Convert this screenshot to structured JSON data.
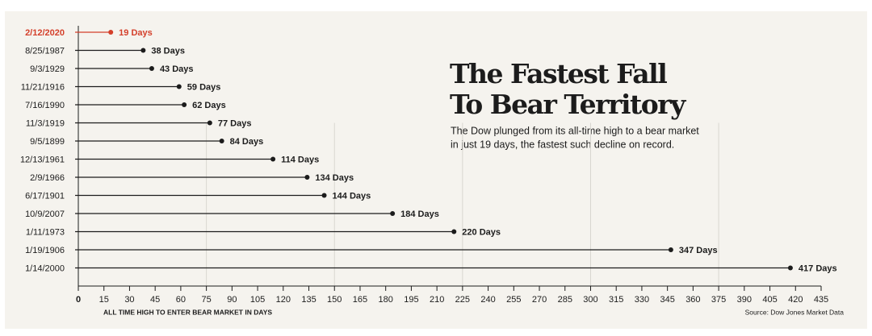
{
  "chart_data": {
    "type": "lollipop",
    "title": [
      "The Fastest Fall",
      "To Bear Territory"
    ],
    "subtitle": [
      "The Dow plunged from its all-time high to a bear market",
      "in just 19 days, the fastest such decline on record."
    ],
    "categories": [
      "2/12/2020",
      "8/25/1987",
      "9/3/1929",
      "11/21/1916",
      "7/16/1990",
      "11/3/1919",
      "9/5/1899",
      "12/13/1961",
      "2/9/1966",
      "6/17/1901",
      "10/9/2007",
      "1/11/1973",
      "1/19/1906",
      "1/14/2000"
    ],
    "values": [
      19,
      38,
      43,
      59,
      62,
      77,
      84,
      114,
      134,
      144,
      184,
      220,
      347,
      417
    ],
    "value_labels": [
      "19 Days",
      "38 Days",
      "43 Days",
      "59 Days",
      "62 Days",
      "77 Days",
      "84 Days",
      "114 Days",
      "134 Days",
      "144 Days",
      "184 Days",
      "220 Days",
      "347 Days",
      "417 Days"
    ],
    "colors": [
      "#d43f2a",
      "#1c1c1c",
      "#1c1c1c",
      "#1c1c1c",
      "#1c1c1c",
      "#1c1c1c",
      "#1c1c1c",
      "#1c1c1c",
      "#1c1c1c",
      "#1c1c1c",
      "#1c1c1c",
      "#1c1c1c",
      "#1c1c1c",
      "#1c1c1c"
    ],
    "xlabel": "ALL TIME HIGH TO ENTER BEAR MARKET IN DAYS",
    "source": "Source: Dow Jones Market Data",
    "xlim": [
      0,
      435
    ],
    "xticks": [
      0,
      15,
      30,
      45,
      60,
      75,
      90,
      105,
      120,
      135,
      150,
      165,
      180,
      195,
      210,
      225,
      240,
      255,
      270,
      285,
      300,
      315,
      330,
      345,
      360,
      375,
      390,
      405,
      420,
      435
    ],
    "grid": true
  }
}
